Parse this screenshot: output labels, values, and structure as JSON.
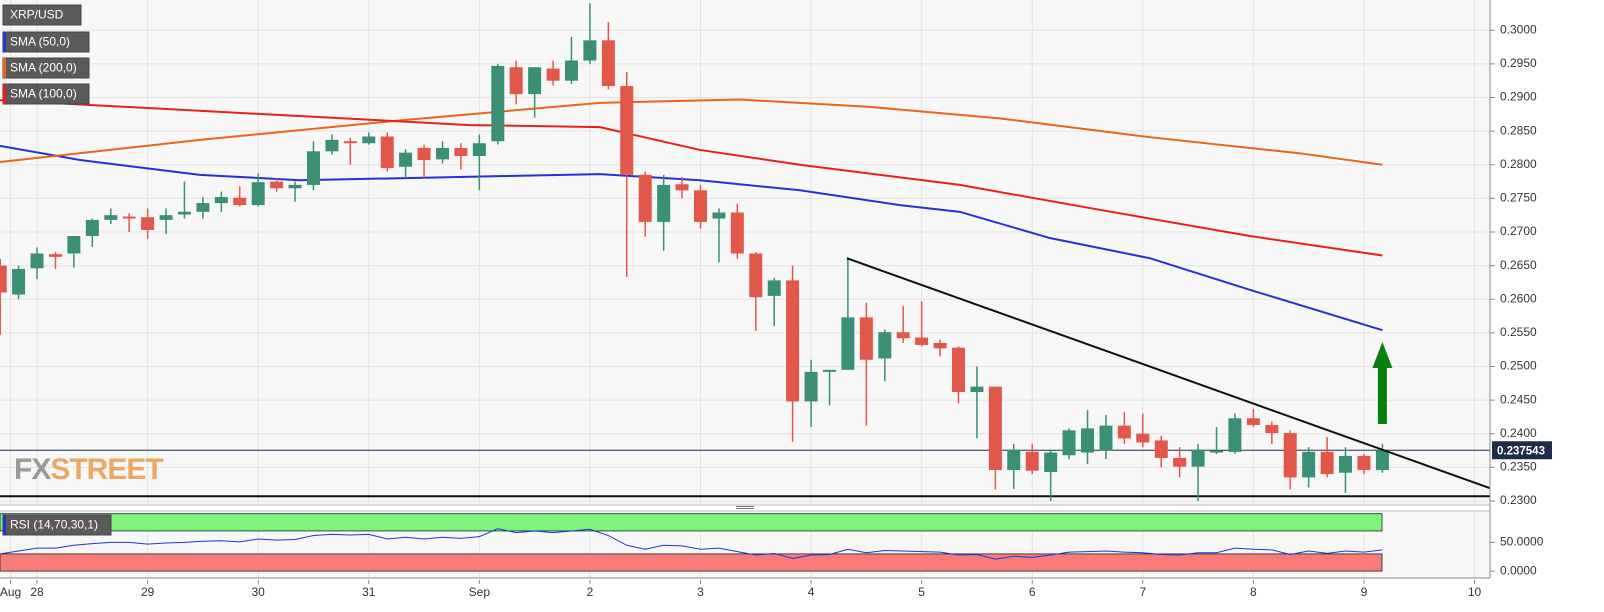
{
  "chart_data": {
    "type": "candlestick",
    "symbol": "XRP/USD",
    "up_color": "#3a8f74",
    "down_color": "#e1584a",
    "x": [
      27.667,
      27.833,
      28,
      28.167,
      28.333,
      28.5,
      28.667,
      28.833,
      29,
      29.167,
      29.333,
      29.5,
      29.667,
      29.833,
      30,
      30.167,
      30.333,
      30.5,
      30.667,
      30.833,
      31,
      31.167,
      31.333,
      31.5,
      31.667,
      31.833,
      32,
      32.167,
      32.333,
      32.5,
      32.667,
      32.833,
      33,
      33.167,
      33.333,
      33.5,
      33.667,
      33.833,
      34,
      34.167,
      34.333,
      34.5,
      34.667,
      34.833,
      35,
      35.167,
      35.333,
      35.5,
      35.667,
      35.833,
      36,
      36.167,
      36.333,
      36.5,
      36.667,
      36.833,
      37,
      37.167,
      37.333,
      37.5,
      37.667,
      37.833,
      38,
      38.167,
      38.333,
      38.5,
      38.667,
      38.833,
      39,
      39.167,
      39.333,
      39.5,
      39.667,
      39.833,
      40,
      40.167
    ],
    "open": [
      0.265,
      0.2607,
      0.2646,
      0.2667,
      0.2668,
      0.2694,
      0.2718,
      0.2723,
      0.2722,
      0.2718,
      0.2726,
      0.273,
      0.2743,
      0.2751,
      0.274,
      0.2775,
      0.2765,
      0.277,
      0.282,
      0.2835,
      0.2832,
      0.2842,
      0.2797,
      0.2825,
      0.2808,
      0.2825,
      0.2813,
      0.2835,
      0.2945,
      0.2905,
      0.2943,
      0.2925,
      0.2955,
      0.2985,
      0.2917,
      0.2785,
      0.2715,
      0.2771,
      0.2762,
      0.272,
      0.2729,
      0.2668,
      0.2605,
      0.2628,
      0.2448,
      0.2492,
      0.2495,
      0.2573,
      0.2512,
      0.2551,
      0.2543,
      0.2535,
      0.2528,
      0.2462,
      0.247,
      0.2346,
      0.2373,
      0.2343,
      0.2368,
      0.2372,
      0.2375,
      0.2412,
      0.24,
      0.239,
      0.2364,
      0.2351,
      0.2372,
      0.2373,
      0.2423,
      0.2413,
      0.2401,
      0.2335,
      0.2373,
      0.2342,
      0.2367,
      0.2346
    ],
    "high": [
      0.266,
      0.265,
      0.2677,
      0.267,
      0.2694,
      0.272,
      0.2735,
      0.2728,
      0.2735,
      0.2735,
      0.2775,
      0.2752,
      0.276,
      0.2768,
      0.2787,
      0.278,
      0.2775,
      0.2835,
      0.2845,
      0.284,
      0.2848,
      0.2848,
      0.2823,
      0.283,
      0.2835,
      0.2832,
      0.2845,
      0.295,
      0.2955,
      0.2945,
      0.2955,
      0.299,
      0.304,
      0.3012,
      0.2938,
      0.279,
      0.2785,
      0.2782,
      0.277,
      0.2735,
      0.2742,
      0.267,
      0.2632,
      0.265,
      0.251,
      0.2495,
      0.266,
      0.2595,
      0.2555,
      0.259,
      0.2597,
      0.254,
      0.253,
      0.25,
      0.247,
      0.2385,
      0.2385,
      0.2375,
      0.2408,
      0.2435,
      0.2428,
      0.2432,
      0.243,
      0.2397,
      0.238,
      0.2385,
      0.241,
      0.243,
      0.2437,
      0.2418,
      0.2405,
      0.238,
      0.2395,
      0.238,
      0.237,
      0.2385
    ],
    "low": [
      0.2547,
      0.26,
      0.263,
      0.2645,
      0.2647,
      0.2678,
      0.2712,
      0.27,
      0.269,
      0.2697,
      0.272,
      0.272,
      0.273,
      0.2738,
      0.2738,
      0.276,
      0.2745,
      0.2762,
      0.2815,
      0.28,
      0.283,
      0.279,
      0.278,
      0.278,
      0.2802,
      0.2793,
      0.2762,
      0.283,
      0.289,
      0.287,
      0.2918,
      0.292,
      0.295,
      0.2912,
      0.2633,
      0.2693,
      0.2672,
      0.275,
      0.2705,
      0.2655,
      0.266,
      0.2553,
      0.256,
      0.2388,
      0.241,
      0.2442,
      0.2495,
      0.2412,
      0.2478,
      0.2535,
      0.253,
      0.2515,
      0.2445,
      0.2393,
      0.2317,
      0.2318,
      0.234,
      0.23,
      0.2362,
      0.2355,
      0.2362,
      0.2385,
      0.238,
      0.235,
      0.2335,
      0.23,
      0.237,
      0.237,
      0.241,
      0.2385,
      0.2317,
      0.232,
      0.2335,
      0.2312,
      0.234,
      0.2342
    ],
    "close": [
      0.261,
      0.2645,
      0.2668,
      0.2663,
      0.2694,
      0.2718,
      0.2725,
      0.272,
      0.2703,
      0.2725,
      0.273,
      0.2743,
      0.2752,
      0.274,
      0.2774,
      0.2765,
      0.277,
      0.282,
      0.2837,
      0.2832,
      0.2842,
      0.2795,
      0.2818,
      0.2807,
      0.2825,
      0.2813,
      0.2832,
      0.2947,
      0.2905,
      0.2945,
      0.2925,
      0.2955,
      0.2985,
      0.2917,
      0.2785,
      0.2715,
      0.277,
      0.2762,
      0.2715,
      0.2729,
      0.2668,
      0.2603,
      0.2628,
      0.2448,
      0.2492,
      0.2495,
      0.2573,
      0.251,
      0.2551,
      0.2542,
      0.2532,
      0.2527,
      0.2462,
      0.247,
      0.2346,
      0.2376,
      0.2345,
      0.2372,
      0.2405,
      0.2408,
      0.2412,
      0.2393,
      0.2387,
      0.2364,
      0.2351,
      0.2376,
      0.2375,
      0.2423,
      0.2413,
      0.2401,
      0.2335,
      0.2373,
      0.234,
      0.2367,
      0.2346,
      0.237543
    ],
    "lines": [
      {
        "name": "SMA (50,0)",
        "color": "#2333d8",
        "x": [
          27.665,
          28.389,
          29.474,
          30.378,
          31.282,
          32.186,
          33.09,
          33.995,
          34.899,
          35.803,
          36.345,
          37.159,
          38.063,
          38.968,
          40.167
        ],
        "values": [
          0.2828,
          0.2807,
          0.2785,
          0.2777,
          0.278,
          0.2783,
          0.2786,
          0.2777,
          0.2762,
          0.274,
          0.273,
          0.2691,
          0.2661,
          0.2614,
          0.2554
        ]
      },
      {
        "name": "SMA (200,0)",
        "color": "#e8661a",
        "x": [
          27.665,
          29.474,
          31.282,
          33.09,
          34.356,
          35.532,
          36.707,
          38.063,
          39.42,
          40.167
        ],
        "values": [
          0.2804,
          0.2837,
          0.2866,
          0.2892,
          0.2897,
          0.2886,
          0.2869,
          0.2841,
          0.2817,
          0.28
        ]
      },
      {
        "name": "SMA (100,0)",
        "color": "#e8201a",
        "x": [
          27.665,
          31.915,
          33.09,
          33.995,
          34.899,
          36.345,
          37.611,
          38.968,
          40.167
        ],
        "values": [
          0.2896,
          0.2859,
          0.2856,
          0.2822,
          0.28,
          0.277,
          0.2733,
          0.2694,
          0.2665
        ]
      }
    ],
    "trendline": {
      "x": [
        35.324,
        41.14
      ],
      "values": [
        0.2661,
        0.2319
      ]
    },
    "support": 0.2307,
    "last_price": 0.237543,
    "watermark_fx": "FX",
    "watermark_street": "STREET",
    "xlim": [
      27.665,
      41.14
    ],
    "xticks": [
      {
        "value": 27.76,
        "label": "Aug"
      },
      28,
      29,
      30,
      31,
      {
        "value": 32,
        "label": "Sep"
      },
      {
        "value": 33,
        "label": "2"
      },
      {
        "value": 34,
        "label": "3"
      },
      {
        "value": 35,
        "label": "4"
      },
      {
        "value": 36,
        "label": "5"
      },
      {
        "value": 37,
        "label": "6"
      },
      {
        "value": 38,
        "label": "7"
      },
      {
        "value": 39,
        "label": "8"
      },
      {
        "value": 40,
        "label": "9"
      },
      {
        "value": 41,
        "label": "10"
      }
    ],
    "ylim": [
      0.2294,
      0.3045
    ],
    "yticks": [
      {
        "value": 0.23,
        "label": "0.2300"
      },
      {
        "value": 0.235,
        "label": "0.2350"
      },
      {
        "value": 0.24,
        "label": "0.2400"
      },
      {
        "value": 0.245,
        "label": "0.2450"
      },
      {
        "value": 0.25,
        "label": "0.2500"
      },
      {
        "value": 0.255,
        "label": "0.2550"
      },
      {
        "value": 0.26,
        "label": "0.2600"
      },
      {
        "value": 0.265,
        "label": "0.2650"
      },
      {
        "value": 0.27,
        "label": "0.2700"
      },
      {
        "value": 0.275,
        "label": "0.2750"
      },
      {
        "value": 0.28,
        "label": "0.2800"
      },
      {
        "value": 0.285,
        "label": "0.2850"
      },
      {
        "value": 0.29,
        "label": "0.2900"
      },
      {
        "value": 0.295,
        "label": "0.2950"
      },
      {
        "value": 0.3,
        "label": "0.3000"
      }
    ],
    "grid": true,
    "rsi": {
      "name": "RSI (14,70,30,1)",
      "color": "#2333d8",
      "values": [
        30,
        35,
        40,
        40,
        45,
        48,
        50,
        50,
        47,
        49,
        50,
        52,
        53,
        51,
        56,
        54,
        55,
        62,
        64,
        63,
        64,
        56,
        59,
        56,
        59,
        57,
        60,
        74,
        67,
        70,
        67,
        70,
        73,
        62,
        45,
        38,
        45,
        44,
        38,
        40,
        34,
        28,
        31,
        22,
        28,
        29,
        38,
        32,
        36,
        35,
        34,
        33,
        28,
        29,
        21,
        26,
        24,
        28,
        33,
        34,
        35,
        33,
        32,
        29,
        28,
        32,
        32,
        40,
        38,
        37,
        29,
        35,
        31,
        35,
        33,
        37
      ],
      "bands": [
        {
          "from": 70,
          "to": 100,
          "color": "#7cf47c"
        },
        {
          "from": 0,
          "to": 30,
          "color": "#f77b78"
        }
      ],
      "ylim": [
        -12,
        103
      ],
      "yticks": [
        {
          "value": 50,
          "label": "50.0000"
        },
        {
          "value": 0,
          "label": "0.0000"
        }
      ]
    }
  }
}
